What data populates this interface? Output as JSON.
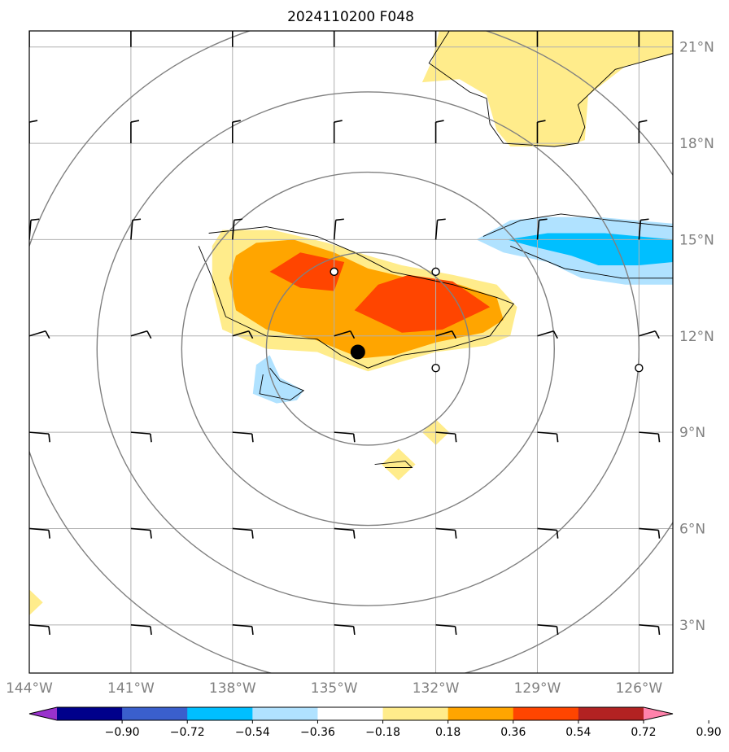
{
  "title": "2024110200 F048",
  "chart_data": {
    "type": "contour-map",
    "title": "2024110200 F048",
    "lon_range": [
      -144.0,
      -125.0
    ],
    "lat_range": [
      1.5,
      21.5
    ],
    "lon_ticks": [
      {
        "value": -144,
        "label": "144°W"
      },
      {
        "value": -141,
        "label": "141°W"
      },
      {
        "value": -138,
        "label": "138°W"
      },
      {
        "value": -135,
        "label": "135°W"
      },
      {
        "value": -132,
        "label": "132°W"
      },
      {
        "value": -129,
        "label": "129°W"
      },
      {
        "value": -126,
        "label": "126°W"
      }
    ],
    "lat_ticks": [
      {
        "value": 3,
        "label": "3°N"
      },
      {
        "value": 6,
        "label": "6°N"
      },
      {
        "value": 9,
        "label": "9°N"
      },
      {
        "value": 12,
        "label": "12°N"
      },
      {
        "value": 15,
        "label": "15°N"
      },
      {
        "value": 18,
        "label": "18°N"
      },
      {
        "value": 21,
        "label": "21°N"
      }
    ],
    "grid": true,
    "colorbar": {
      "orientation": "horizontal",
      "extend": "both",
      "labels": [
        "−0.90",
        "−0.72",
        "−0.54",
        "−0.36",
        "−0.18",
        "0.18",
        "0.36",
        "0.54",
        "0.72",
        "0.90"
      ],
      "colors": [
        "#9932cc",
        "#00008b",
        "#3a5fcd",
        "#00bfff",
        "#b0e2ff",
        "#ffffff",
        "#ffec8b",
        "#ffa500",
        "#ff4500",
        "#b22222",
        "#ff82ab"
      ]
    },
    "center": {
      "lon": -134.3,
      "lat": 11.5
    },
    "range_rings": [
      {
        "center_lon": -134.0,
        "center_lat": 11.6,
        "radius_deg": 3.0
      },
      {
        "center_lon": -134.0,
        "center_lat": 11.6,
        "radius_deg": 5.5
      },
      {
        "center_lon": -134.0,
        "center_lat": 11.6,
        "radius_deg": 8.0
      },
      {
        "center_lon": -134.0,
        "center_lat": 11.6,
        "radius_deg": 10.5
      }
    ],
    "shaded_regions": [
      {
        "level": "0.18-0.36",
        "color": "#ffec8b",
        "points": [
          [
            -138.3,
            15.3
          ],
          [
            -136.8,
            15.3
          ],
          [
            -135.2,
            14.9
          ],
          [
            -134.0,
            14.5
          ],
          [
            -133.0,
            14.2
          ],
          [
            -131.5,
            13.9
          ],
          [
            -130.2,
            13.6
          ],
          [
            -129.6,
            12.9
          ],
          [
            -129.8,
            12.0
          ],
          [
            -130.5,
            11.7
          ],
          [
            -132.0,
            11.5
          ],
          [
            -133.0,
            11.2
          ],
          [
            -134.0,
            10.9
          ],
          [
            -134.8,
            11.2
          ],
          [
            -135.5,
            11.5
          ],
          [
            -137.0,
            11.6
          ],
          [
            -138.3,
            12.2
          ],
          [
            -138.6,
            13.5
          ],
          [
            -138.6,
            14.8
          ]
        ]
      },
      {
        "level": "0.36-0.54",
        "color": "#ffa500",
        "points": [
          [
            -137.9,
            14.5
          ],
          [
            -137.3,
            14.9
          ],
          [
            -136.2,
            15.0
          ],
          [
            -135.0,
            14.6
          ],
          [
            -134.0,
            14.1
          ],
          [
            -132.8,
            13.8
          ],
          [
            -131.3,
            13.6
          ],
          [
            -130.2,
            13.2
          ],
          [
            -130.0,
            12.5
          ],
          [
            -130.6,
            12.1
          ],
          [
            -132.0,
            11.8
          ],
          [
            -133.2,
            11.4
          ],
          [
            -134.2,
            11.3
          ],
          [
            -134.9,
            11.6
          ],
          [
            -135.6,
            11.9
          ],
          [
            -137.0,
            12.2
          ],
          [
            -137.9,
            12.8
          ],
          [
            -138.1,
            13.8
          ]
        ]
      },
      {
        "level": "0.54-0.72",
        "color": "#ff4500",
        "points": [
          [
            -136.9,
            14.0
          ],
          [
            -136.0,
            14.6
          ],
          [
            -134.7,
            14.3
          ],
          [
            -135.0,
            13.4
          ],
          [
            -136.0,
            13.5
          ]
        ]
      },
      {
        "level": "0.54-0.72",
        "color": "#ff4500",
        "points": [
          [
            -133.7,
            13.6
          ],
          [
            -132.8,
            13.9
          ],
          [
            -131.5,
            13.7
          ],
          [
            -130.4,
            12.9
          ],
          [
            -131.8,
            12.2
          ],
          [
            -133.0,
            12.1
          ],
          [
            -134.4,
            12.8
          ]
        ]
      },
      {
        "level": "0.18-0.36",
        "color": "#ffec8b",
        "points": [
          [
            -144.0,
            4.1
          ],
          [
            -143.6,
            3.7
          ],
          [
            -144.0,
            3.3
          ]
        ]
      },
      {
        "level": "0.18-0.36",
        "color": "#ffec8b",
        "points": [
          [
            -132.4,
            9.0
          ],
          [
            -132.0,
            9.4
          ],
          [
            -131.6,
            9.0
          ],
          [
            -132.0,
            8.6
          ]
        ]
      },
      {
        "level": "0.18-0.36",
        "color": "#ffec8b",
        "points": [
          [
            -133.6,
            8.0
          ],
          [
            -133.1,
            8.5
          ],
          [
            -132.6,
            8.0
          ],
          [
            -133.1,
            7.5
          ]
        ]
      },
      {
        "level": "0.18-0.36",
        "color": "#ffec8b",
        "points": [
          [
            -131.9,
            21.5
          ],
          [
            -126.0,
            21.5
          ],
          [
            -125.0,
            21.5
          ],
          [
            -125.0,
            20.8
          ],
          [
            -126.4,
            20.4
          ],
          [
            -127.5,
            19.5
          ],
          [
            -127.6,
            18.1
          ],
          [
            -128.2,
            17.9
          ],
          [
            -129.8,
            17.9
          ],
          [
            -130.2,
            18.4
          ],
          [
            -130.5,
            19.5
          ],
          [
            -131.3,
            20.0
          ],
          [
            -132.4,
            19.9
          ],
          [
            -132.1,
            20.6
          ]
        ]
      },
      {
        "level": "-0.36--0.18",
        "color": "#b0e2ff",
        "points": [
          [
            -130.8,
            15.0
          ],
          [
            -129.8,
            15.6
          ],
          [
            -128.8,
            15.7
          ],
          [
            -127.2,
            15.7
          ],
          [
            -125.0,
            15.5
          ],
          [
            -125.0,
            13.6
          ],
          [
            -126.4,
            13.6
          ],
          [
            -127.7,
            13.8
          ],
          [
            -128.7,
            14.3
          ],
          [
            -130.0,
            14.6
          ]
        ]
      },
      {
        "level": "-0.54--0.36",
        "color": "#00bfff",
        "points": [
          [
            -129.9,
            15.0
          ],
          [
            -128.7,
            15.2
          ],
          [
            -127.0,
            15.2
          ],
          [
            -125.0,
            15.0
          ],
          [
            -125.0,
            14.3
          ],
          [
            -126.0,
            14.2
          ],
          [
            -127.2,
            14.2
          ],
          [
            -128.0,
            14.5
          ],
          [
            -129.2,
            14.8
          ]
        ]
      },
      {
        "level": "-0.36--0.18",
        "color": "#b0e2ff",
        "points": [
          [
            -137.3,
            11.1
          ],
          [
            -136.9,
            11.4
          ],
          [
            -136.6,
            10.7
          ],
          [
            -135.9,
            10.3
          ],
          [
            -136.1,
            10.0
          ],
          [
            -136.7,
            9.9
          ],
          [
            -137.4,
            10.2
          ]
        ]
      }
    ],
    "contour_lines": [
      [
        [
          -138.7,
          15.2
        ],
        [
          -137.0,
          15.4
        ],
        [
          -135.5,
          15.1
        ],
        [
          -134.4,
          14.6
        ],
        [
          -133.3,
          14.0
        ],
        [
          -131.5,
          13.6
        ],
        [
          -130.2,
          13.2
        ],
        [
          -129.7,
          13.0
        ],
        [
          -130.4,
          12.0
        ],
        [
          -131.7,
          11.6
        ],
        [
          -133.0,
          11.4
        ],
        [
          -134.0,
          11.0
        ],
        [
          -134.8,
          11.4
        ],
        [
          -135.5,
          11.9
        ],
        [
          -137.0,
          12.0
        ],
        [
          -138.2,
          12.6
        ],
        [
          -138.6,
          13.8
        ],
        [
          -139.0,
          14.8
        ]
      ],
      [
        [
          -136.9,
          11.0
        ],
        [
          -136.6,
          10.6
        ],
        [
          -135.9,
          10.3
        ],
        [
          -136.3,
          10.0
        ],
        [
          -137.2,
          10.2
        ],
        [
          -137.1,
          10.8
        ]
      ],
      [
        [
          -133.8,
          8.0
        ],
        [
          -132.9,
          8.1
        ],
        [
          -132.7,
          7.9
        ],
        [
          -133.5,
          7.9
        ]
      ],
      [
        [
          -130.6,
          15.1
        ],
        [
          -129.5,
          15.6
        ],
        [
          -128.3,
          15.8
        ],
        [
          -126.8,
          15.6
        ],
        [
          -125.0,
          15.4
        ],
        [
          -125.0,
          13.8
        ],
        [
          -126.5,
          13.8
        ],
        [
          -128.2,
          14.1
        ],
        [
          -129.8,
          14.8
        ]
      ],
      [
        [
          -131.6,
          21.5
        ],
        [
          -132.2,
          20.5
        ],
        [
          -131.0,
          19.6
        ],
        [
          -130.5,
          19.4
        ],
        [
          -130.4,
          18.6
        ],
        [
          -130.0,
          18.0
        ],
        [
          -128.5,
          17.9
        ],
        [
          -127.8,
          18.0
        ],
        [
          -127.6,
          18.5
        ],
        [
          -127.8,
          19.2
        ],
        [
          -126.7,
          20.3
        ],
        [
          -125.0,
          20.8
        ]
      ]
    ],
    "wind_barb_positions": [
      [
        -144,
        21
      ],
      [
        -141,
        21
      ],
      [
        -138,
        21
      ],
      [
        -135,
        21
      ],
      [
        -132,
        21
      ],
      [
        -129,
        21
      ],
      [
        -126,
        21
      ],
      [
        -144,
        18
      ],
      [
        -141,
        18
      ],
      [
        -138,
        18
      ],
      [
        -135,
        18
      ],
      [
        -132,
        18
      ],
      [
        -129,
        18
      ],
      [
        -126,
        18
      ],
      [
        -144,
        15
      ],
      [
        -141,
        15
      ],
      [
        -138,
        15
      ],
      [
        -135,
        15
      ],
      [
        -132,
        15
      ],
      [
        -129,
        15
      ],
      [
        -126,
        15
      ],
      [
        -144,
        12
      ],
      [
        -141,
        12
      ],
      [
        -138,
        12
      ],
      [
        -135,
        12
      ],
      [
        -132,
        12
      ],
      [
        -129,
        12
      ],
      [
        -126,
        12
      ],
      [
        -144,
        9
      ],
      [
        -141,
        9
      ],
      [
        -138,
        9
      ],
      [
        -135,
        9
      ],
      [
        -132,
        9
      ],
      [
        -129,
        9
      ],
      [
        -126,
        9
      ],
      [
        -144,
        6
      ],
      [
        -141,
        6
      ],
      [
        -138,
        6
      ],
      [
        -135,
        6
      ],
      [
        -132,
        6
      ],
      [
        -129,
        6
      ],
      [
        -126,
        6
      ],
      [
        -144,
        3
      ],
      [
        -141,
        3
      ],
      [
        -138,
        3
      ],
      [
        -135,
        3
      ],
      [
        -132,
        3
      ],
      [
        -129,
        3
      ],
      [
        -126,
        3
      ]
    ],
    "calm_station_circles": [
      [
        -135,
        14
      ],
      [
        -132,
        14
      ],
      [
        -132,
        11
      ],
      [
        -126,
        11
      ]
    ]
  }
}
